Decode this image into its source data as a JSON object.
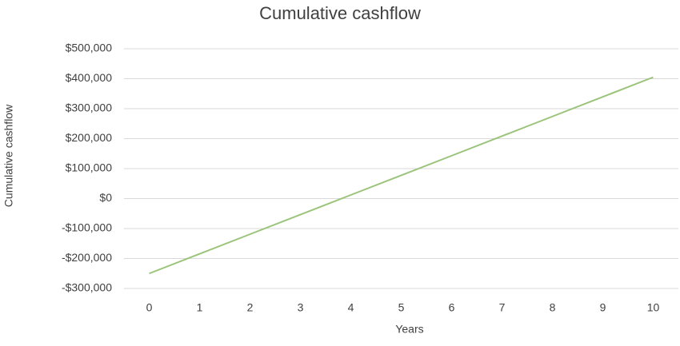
{
  "chart_data": {
    "type": "line",
    "title": "Cumulative cashflow",
    "x_label": "Years",
    "y_label": "Cumulative cashflow",
    "categories": [
      "0",
      "1",
      "2",
      "3",
      "4",
      "5",
      "6",
      "7",
      "8",
      "9",
      "10"
    ],
    "series": [
      {
        "name": "Cumulative cashflow",
        "color": "#9bc47a",
        "values": [
          -250000,
          -184500,
          -119000,
          -53500,
          12000,
          77500,
          143000,
          208500,
          274000,
          339500,
          405000
        ]
      }
    ],
    "ylim": [
      -300000,
      500000
    ],
    "yticks": [
      {
        "value": -300000,
        "label": "-$300,000"
      },
      {
        "value": -200000,
        "label": "-$200,000"
      },
      {
        "value": -100000,
        "label": "-$100,000"
      },
      {
        "value": 0,
        "label": "$0"
      },
      {
        "value": 100000,
        "label": "$100,000"
      },
      {
        "value": 200000,
        "label": "$200,000"
      },
      {
        "value": 300000,
        "label": "$300,000"
      },
      {
        "value": 400000,
        "label": "$400,000"
      },
      {
        "value": 500000,
        "label": "$500,000"
      }
    ],
    "grid": true
  }
}
